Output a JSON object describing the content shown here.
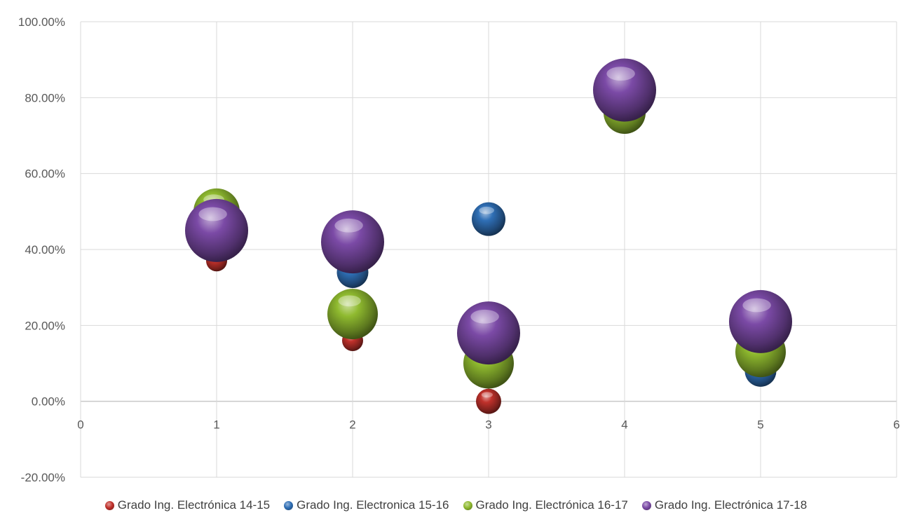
{
  "chart_data": {
    "type": "bubble",
    "title": "",
    "xlabel": "",
    "ylabel": "",
    "xlim": [
      0,
      6
    ],
    "ylim": [
      -0.2,
      1.0
    ],
    "x_ticks": [
      "0",
      "1",
      "2",
      "3",
      "4",
      "5",
      "6"
    ],
    "y_ticks": [
      "-20.00%",
      "0.00%",
      "20.00%",
      "40.00%",
      "60.00%",
      "80.00%",
      "100.00%"
    ],
    "grid": "vertical and horizontal",
    "legend_position": "bottom",
    "series": [
      {
        "name": "Grado Ing. Electrónica 14-15",
        "color": "#c0312b",
        "points": [
          {
            "x": 1,
            "y": 0.37,
            "size": 1.0
          },
          {
            "x": 2,
            "y": 0.16,
            "size": 1.0
          },
          {
            "x": 3,
            "y": 0.0,
            "size": 1.2
          }
        ]
      },
      {
        "name": "Grado Ing. Electronica 15-16",
        "color": "#2f6fb6",
        "points": [
          {
            "x": 2,
            "y": 0.34,
            "size": 1.5
          },
          {
            "x": 3,
            "y": 0.48,
            "size": 1.6
          },
          {
            "x": 5,
            "y": 0.08,
            "size": 1.5
          }
        ]
      },
      {
        "name": "Grado Ing. Electrónica 16-17",
        "color": "#8fba2f",
        "points": [
          {
            "x": 1,
            "y": 0.5,
            "size": 2.2
          },
          {
            "x": 2,
            "y": 0.23,
            "size": 2.4
          },
          {
            "x": 3,
            "y": 0.1,
            "size": 2.4
          },
          {
            "x": 4,
            "y": 0.76,
            "size": 2.0
          },
          {
            "x": 5,
            "y": 0.13,
            "size": 2.4
          }
        ]
      },
      {
        "name": "Grado Ing. Electrónica 17-18",
        "color": "#7b4aa6",
        "points": [
          {
            "x": 1,
            "y": 0.45,
            "size": 3.0
          },
          {
            "x": 2,
            "y": 0.42,
            "size": 3.0
          },
          {
            "x": 3,
            "y": 0.18,
            "size": 3.0
          },
          {
            "x": 4,
            "y": 0.82,
            "size": 3.0
          },
          {
            "x": 5,
            "y": 0.21,
            "size": 3.0
          }
        ]
      }
    ]
  }
}
